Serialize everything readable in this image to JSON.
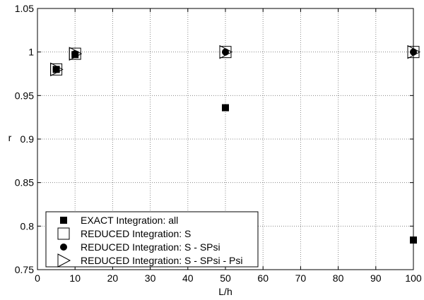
{
  "chart_data": {
    "type": "scatter",
    "title": "",
    "xlabel": "L/h",
    "ylabel": "r",
    "xlim": [
      0,
      100
    ],
    "ylim": [
      0.75,
      1.05
    ],
    "xticks": [
      0,
      10,
      20,
      30,
      40,
      50,
      60,
      70,
      80,
      90,
      100
    ],
    "yticks": [
      0.75,
      0.8,
      0.85,
      0.9,
      0.95,
      1,
      1.05
    ],
    "ytick_labels": [
      "0.75",
      "0.8",
      "0.85",
      "0.9",
      "0.95",
      "1",
      "1.05"
    ],
    "grid": true,
    "legend_position": "bottom-left",
    "series": [
      {
        "name": "EXACT Integration: all",
        "marker": "filled-square",
        "x": [
          5,
          10,
          50,
          100
        ],
        "y": [
          0.98,
          0.997,
          0.936,
          0.784
        ]
      },
      {
        "name": "REDUCED Integration: S",
        "marker": "open-square",
        "x": [
          5,
          10,
          50,
          100
        ],
        "y": [
          0.98,
          0.998,
          1.0,
          1.0
        ]
      },
      {
        "name": "REDUCED Integration: S - SPsi",
        "marker": "filled-circle",
        "x": [
          5,
          10,
          50,
          100
        ],
        "y": [
          0.98,
          0.998,
          1.0,
          1.0
        ]
      },
      {
        "name": "REDUCED Integration: S - SPsi - Psi",
        "marker": "open-triangle-right",
        "x": [
          5,
          10,
          50,
          100
        ],
        "y": [
          0.98,
          0.998,
          1.0,
          1.0
        ]
      }
    ]
  }
}
